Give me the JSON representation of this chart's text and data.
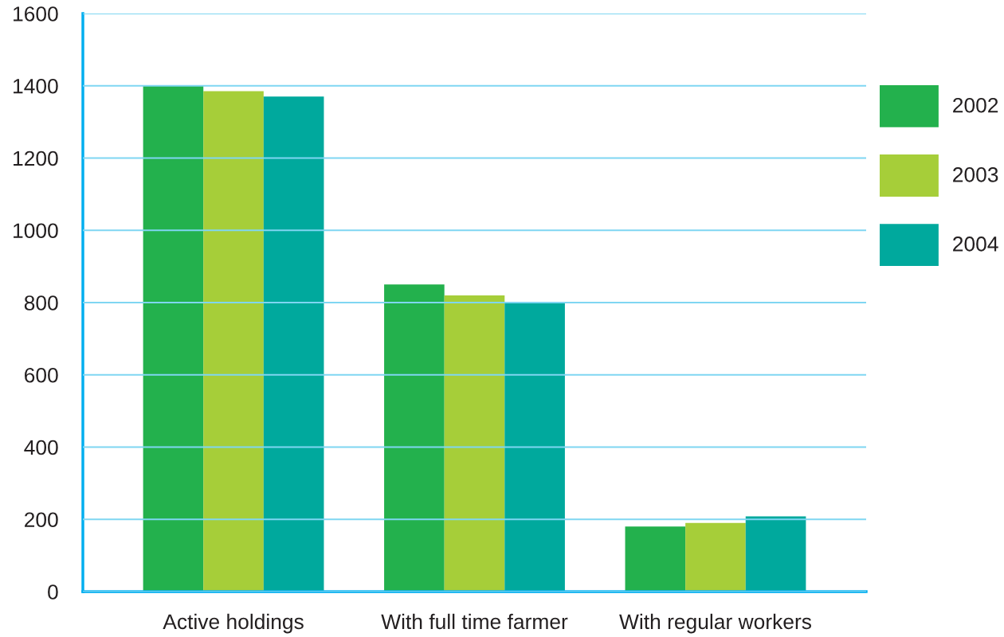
{
  "chart_data": {
    "type": "bar",
    "categories": [
      "Active holdings",
      "With full time farmer",
      "With regular workers"
    ],
    "series": [
      {
        "name": "2002",
        "color": "#23b14d",
        "values": [
          1400,
          850,
          180
        ]
      },
      {
        "name": "2003",
        "color": "#a6ce39",
        "values": [
          1385,
          820,
          190
        ]
      },
      {
        "name": "2004",
        "color": "#00a99d",
        "values": [
          1370,
          798,
          208
        ]
      }
    ],
    "ylim": [
      0,
      1600
    ],
    "yticks": [
      0,
      200,
      400,
      600,
      800,
      1000,
      1200,
      1400,
      1600
    ],
    "grid": "y",
    "legend": "right"
  }
}
